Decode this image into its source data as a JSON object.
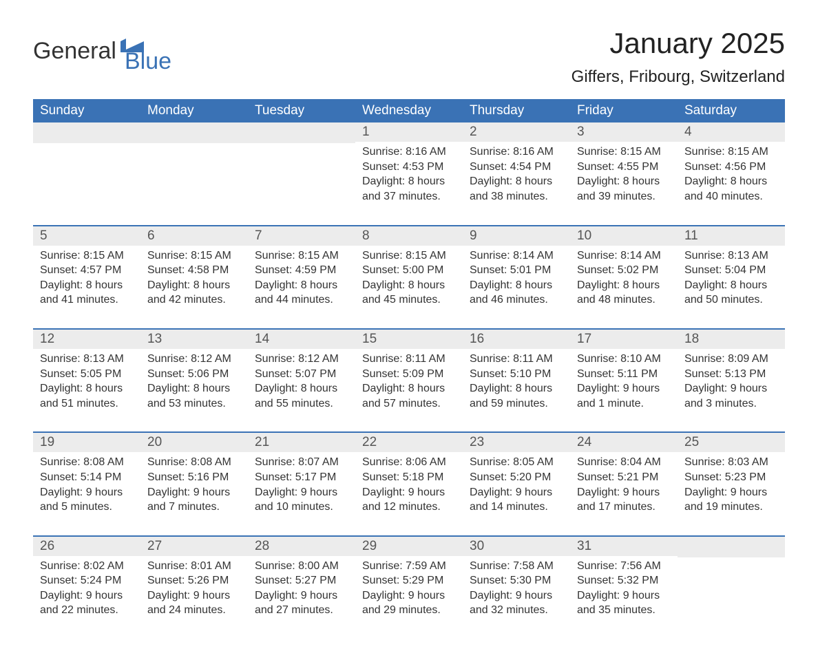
{
  "logo": {
    "general": "General",
    "blue": "Blue"
  },
  "title": "January 2025",
  "location": "Giffers, Fribourg, Switzerland",
  "weekdays": [
    "Sunday",
    "Monday",
    "Tuesday",
    "Wednesday",
    "Thursday",
    "Friday",
    "Saturday"
  ],
  "colors": {
    "accent": "#3a72b5",
    "strip": "#ececec",
    "background": "#ffffff",
    "text": "#333333"
  },
  "weeks": [
    [
      {
        "day": ""
      },
      {
        "day": ""
      },
      {
        "day": ""
      },
      {
        "day": "1",
        "sunrise": "Sunrise: 8:16 AM",
        "sunset": "Sunset: 4:53 PM",
        "daylight1": "Daylight: 8 hours",
        "daylight2": "and 37 minutes."
      },
      {
        "day": "2",
        "sunrise": "Sunrise: 8:16 AM",
        "sunset": "Sunset: 4:54 PM",
        "daylight1": "Daylight: 8 hours",
        "daylight2": "and 38 minutes."
      },
      {
        "day": "3",
        "sunrise": "Sunrise: 8:15 AM",
        "sunset": "Sunset: 4:55 PM",
        "daylight1": "Daylight: 8 hours",
        "daylight2": "and 39 minutes."
      },
      {
        "day": "4",
        "sunrise": "Sunrise: 8:15 AM",
        "sunset": "Sunset: 4:56 PM",
        "daylight1": "Daylight: 8 hours",
        "daylight2": "and 40 minutes."
      }
    ],
    [
      {
        "day": "5",
        "sunrise": "Sunrise: 8:15 AM",
        "sunset": "Sunset: 4:57 PM",
        "daylight1": "Daylight: 8 hours",
        "daylight2": "and 41 minutes."
      },
      {
        "day": "6",
        "sunrise": "Sunrise: 8:15 AM",
        "sunset": "Sunset: 4:58 PM",
        "daylight1": "Daylight: 8 hours",
        "daylight2": "and 42 minutes."
      },
      {
        "day": "7",
        "sunrise": "Sunrise: 8:15 AM",
        "sunset": "Sunset: 4:59 PM",
        "daylight1": "Daylight: 8 hours",
        "daylight2": "and 44 minutes."
      },
      {
        "day": "8",
        "sunrise": "Sunrise: 8:15 AM",
        "sunset": "Sunset: 5:00 PM",
        "daylight1": "Daylight: 8 hours",
        "daylight2": "and 45 minutes."
      },
      {
        "day": "9",
        "sunrise": "Sunrise: 8:14 AM",
        "sunset": "Sunset: 5:01 PM",
        "daylight1": "Daylight: 8 hours",
        "daylight2": "and 46 minutes."
      },
      {
        "day": "10",
        "sunrise": "Sunrise: 8:14 AM",
        "sunset": "Sunset: 5:02 PM",
        "daylight1": "Daylight: 8 hours",
        "daylight2": "and 48 minutes."
      },
      {
        "day": "11",
        "sunrise": "Sunrise: 8:13 AM",
        "sunset": "Sunset: 5:04 PM",
        "daylight1": "Daylight: 8 hours",
        "daylight2": "and 50 minutes."
      }
    ],
    [
      {
        "day": "12",
        "sunrise": "Sunrise: 8:13 AM",
        "sunset": "Sunset: 5:05 PM",
        "daylight1": "Daylight: 8 hours",
        "daylight2": "and 51 minutes."
      },
      {
        "day": "13",
        "sunrise": "Sunrise: 8:12 AM",
        "sunset": "Sunset: 5:06 PM",
        "daylight1": "Daylight: 8 hours",
        "daylight2": "and 53 minutes."
      },
      {
        "day": "14",
        "sunrise": "Sunrise: 8:12 AM",
        "sunset": "Sunset: 5:07 PM",
        "daylight1": "Daylight: 8 hours",
        "daylight2": "and 55 minutes."
      },
      {
        "day": "15",
        "sunrise": "Sunrise: 8:11 AM",
        "sunset": "Sunset: 5:09 PM",
        "daylight1": "Daylight: 8 hours",
        "daylight2": "and 57 minutes."
      },
      {
        "day": "16",
        "sunrise": "Sunrise: 8:11 AM",
        "sunset": "Sunset: 5:10 PM",
        "daylight1": "Daylight: 8 hours",
        "daylight2": "and 59 minutes."
      },
      {
        "day": "17",
        "sunrise": "Sunrise: 8:10 AM",
        "sunset": "Sunset: 5:11 PM",
        "daylight1": "Daylight: 9 hours",
        "daylight2": "and 1 minute."
      },
      {
        "day": "18",
        "sunrise": "Sunrise: 8:09 AM",
        "sunset": "Sunset: 5:13 PM",
        "daylight1": "Daylight: 9 hours",
        "daylight2": "and 3 minutes."
      }
    ],
    [
      {
        "day": "19",
        "sunrise": "Sunrise: 8:08 AM",
        "sunset": "Sunset: 5:14 PM",
        "daylight1": "Daylight: 9 hours",
        "daylight2": "and 5 minutes."
      },
      {
        "day": "20",
        "sunrise": "Sunrise: 8:08 AM",
        "sunset": "Sunset: 5:16 PM",
        "daylight1": "Daylight: 9 hours",
        "daylight2": "and 7 minutes."
      },
      {
        "day": "21",
        "sunrise": "Sunrise: 8:07 AM",
        "sunset": "Sunset: 5:17 PM",
        "daylight1": "Daylight: 9 hours",
        "daylight2": "and 10 minutes."
      },
      {
        "day": "22",
        "sunrise": "Sunrise: 8:06 AM",
        "sunset": "Sunset: 5:18 PM",
        "daylight1": "Daylight: 9 hours",
        "daylight2": "and 12 minutes."
      },
      {
        "day": "23",
        "sunrise": "Sunrise: 8:05 AM",
        "sunset": "Sunset: 5:20 PM",
        "daylight1": "Daylight: 9 hours",
        "daylight2": "and 14 minutes."
      },
      {
        "day": "24",
        "sunrise": "Sunrise: 8:04 AM",
        "sunset": "Sunset: 5:21 PM",
        "daylight1": "Daylight: 9 hours",
        "daylight2": "and 17 minutes."
      },
      {
        "day": "25",
        "sunrise": "Sunrise: 8:03 AM",
        "sunset": "Sunset: 5:23 PM",
        "daylight1": "Daylight: 9 hours",
        "daylight2": "and 19 minutes."
      }
    ],
    [
      {
        "day": "26",
        "sunrise": "Sunrise: 8:02 AM",
        "sunset": "Sunset: 5:24 PM",
        "daylight1": "Daylight: 9 hours",
        "daylight2": "and 22 minutes."
      },
      {
        "day": "27",
        "sunrise": "Sunrise: 8:01 AM",
        "sunset": "Sunset: 5:26 PM",
        "daylight1": "Daylight: 9 hours",
        "daylight2": "and 24 minutes."
      },
      {
        "day": "28",
        "sunrise": "Sunrise: 8:00 AM",
        "sunset": "Sunset: 5:27 PM",
        "daylight1": "Daylight: 9 hours",
        "daylight2": "and 27 minutes."
      },
      {
        "day": "29",
        "sunrise": "Sunrise: 7:59 AM",
        "sunset": "Sunset: 5:29 PM",
        "daylight1": "Daylight: 9 hours",
        "daylight2": "and 29 minutes."
      },
      {
        "day": "30",
        "sunrise": "Sunrise: 7:58 AM",
        "sunset": "Sunset: 5:30 PM",
        "daylight1": "Daylight: 9 hours",
        "daylight2": "and 32 minutes."
      },
      {
        "day": "31",
        "sunrise": "Sunrise: 7:56 AM",
        "sunset": "Sunset: 5:32 PM",
        "daylight1": "Daylight: 9 hours",
        "daylight2": "and 35 minutes."
      },
      {
        "day": ""
      }
    ]
  ]
}
